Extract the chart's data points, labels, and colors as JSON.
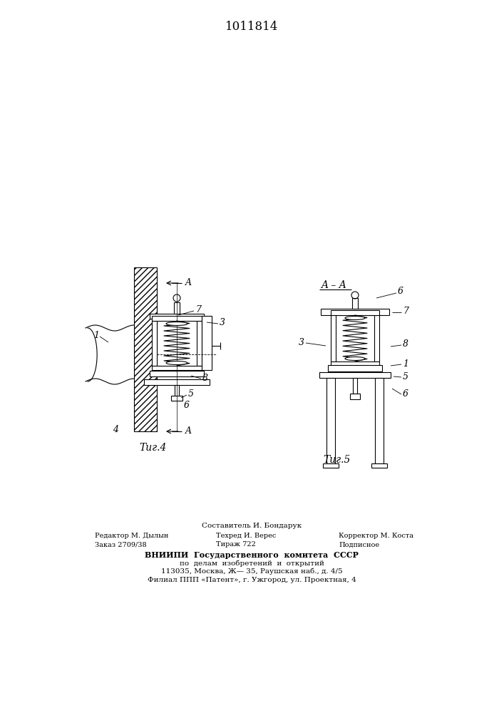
{
  "title": "1011814",
  "bg": "#ffffff",
  "lc": "#000000",
  "fig4_caption": "Τиг.4",
  "fig5_caption": "Τиг.5",
  "footer_sostavitel": "Составитель И. Бондарук",
  "footer_redaktor": "Редактор М. Дылын",
  "footer_tehred": "Техред И. Верес",
  "footer_korrektor": "Корректор М. Коста",
  "footer_zakaz": "Заказ 2709/38",
  "footer_tirazh": "Тираж 722",
  "footer_podpisnoe": "Подписное",
  "footer_vnipi": "ВНИИПИ  Государственного  комитета  СССР",
  "footer_po_delam": "по  делам  изобретений  и  открытий",
  "footer_addr": "113035, Москва, Ж— 35, Раушская наб., д. 4/5",
  "footer_filial": "Филиал ППП «Патент», г. Ужгород, ул. Проектная, 4"
}
